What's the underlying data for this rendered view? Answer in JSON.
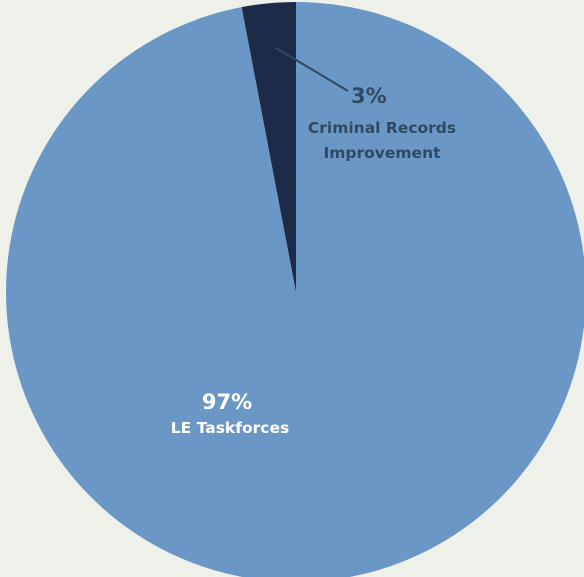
{
  "chart_data": {
    "type": "pie",
    "title": "",
    "slices": [
      {
        "label": "LE Taskforces",
        "percent_label": "97%",
        "value": 97,
        "color": "#6b97c6",
        "label_color": "#ffffff"
      },
      {
        "label": "Criminal Records Improvement",
        "label_lines": [
          "Criminal Records",
          "Improvement"
        ],
        "percent_label": "3%",
        "value": 3,
        "color": "#1c2b48",
        "label_color": "#2f4a60"
      }
    ],
    "start_angle": "12 o'clock",
    "direction": "counterclockwise",
    "leader_line_color": "#2f4a60",
    "background": "#eef0ea"
  }
}
